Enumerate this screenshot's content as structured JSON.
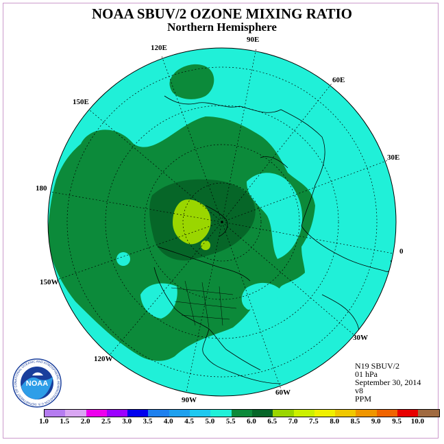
{
  "title": "NOAA SBUV/2 OZONE MIXING RATIO",
  "subtitle": "Northern Hemisphere",
  "longitude_labels": [
    "90E",
    "60E",
    "30E",
    "0",
    "30W",
    "60W",
    "90W",
    "120W",
    "150W",
    "180",
    "150E",
    "120E"
  ],
  "info": {
    "instrument": "N19 SBUV/2",
    "level": "01 hPa",
    "date": "September 30, 2014",
    "version": "v8",
    "units": "PPM"
  },
  "colorbar": {
    "ticks": [
      "1.0",
      "1.5",
      "2.0",
      "2.5",
      "3.0",
      "3.5",
      "4.0",
      "4.5",
      "5.0",
      "5.5",
      "6.0",
      "6.5",
      "7.0",
      "7.5",
      "8.0",
      "8.5",
      "9.0",
      "9.5",
      "10.0"
    ],
    "colors": [
      "#b57cf0",
      "#d9a6f2",
      "#ee00ee",
      "#9c00ff",
      "#0000ee",
      "#1e80ee",
      "#1ea0ee",
      "#1ec8f0",
      "#20f0d8",
      "#0c8a3a",
      "#066628",
      "#9ad600",
      "#ccf000",
      "#f0f000",
      "#f0c800",
      "#f09600",
      "#f06400",
      "#e80000",
      "#a06a40"
    ]
  },
  "logo": {
    "text": "NOAA",
    "ring_text": "NATIONAL OCEANIC AND ATMOSPHERIC ADMINISTRATION U.S. DEPARTMENT OF COMMERCE"
  },
  "colors": {
    "low": "#20f0d8",
    "mid": "#0c8a3a",
    "high": "#066628",
    "peak": "#9ad600"
  }
}
